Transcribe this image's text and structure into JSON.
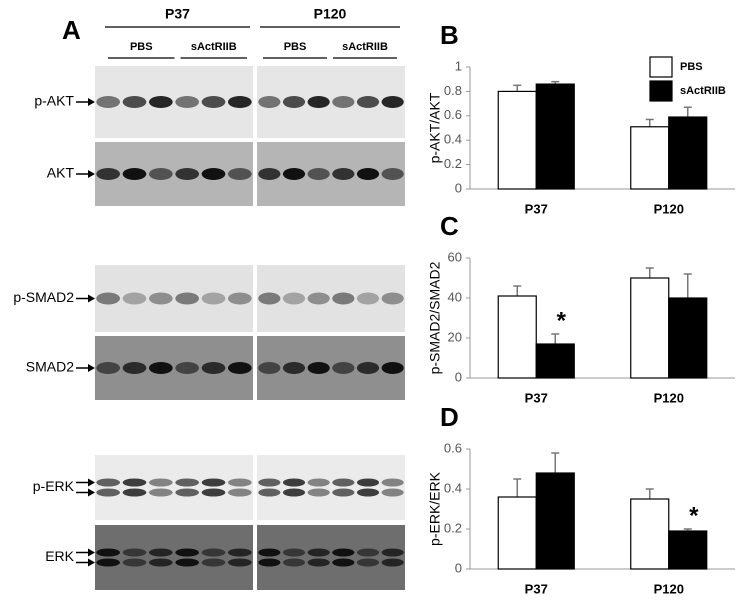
{
  "figure_a": {
    "label": "A",
    "groups": [
      {
        "name": "P37",
        "treatments": [
          "PBS",
          "sActRIIB"
        ]
      },
      {
        "name": "P120",
        "treatments": [
          "PBS",
          "sActRIIB"
        ]
      }
    ],
    "rows": [
      "p-AKT",
      "AKT",
      "p-SMAD2",
      "SMAD2",
      "p-ERK",
      "ERK"
    ]
  },
  "chart_data": [
    {
      "type": "bar",
      "title": "B",
      "y_label": "p-AKT/AKT",
      "categories": [
        "P37",
        "P120"
      ],
      "series": [
        {
          "name": "PBS",
          "color": "#ffffff",
          "values": [
            0.8,
            0.51
          ],
          "errors": [
            0.05,
            0.06
          ]
        },
        {
          "name": "sActRIIB",
          "color": "#000000",
          "values": [
            0.86,
            0.59
          ],
          "errors": [
            0.02,
            0.08
          ]
        }
      ],
      "ylim": [
        0,
        1
      ],
      "yticks": [
        0,
        0.2,
        0.4,
        0.6,
        0.8,
        1
      ],
      "legend": "top-right"
    },
    {
      "type": "bar",
      "title": "C",
      "y_label": "p-SMAD2/SMAD2",
      "categories": [
        "P37",
        "P120"
      ],
      "series": [
        {
          "name": "PBS",
          "color": "#ffffff",
          "values": [
            41,
            50
          ],
          "errors": [
            5,
            5
          ]
        },
        {
          "name": "sActRIIB",
          "color": "#000000",
          "values": [
            17,
            40
          ],
          "errors": [
            5,
            12
          ]
        }
      ],
      "ylim": [
        0,
        60
      ],
      "yticks": [
        0,
        20,
        40,
        60
      ],
      "annotations": [
        {
          "text": "*",
          "series": 1,
          "category": 0
        }
      ]
    },
    {
      "type": "bar",
      "title": "D",
      "y_label": "p-ERK/ERK",
      "categories": [
        "P37",
        "P120"
      ],
      "series": [
        {
          "name": "PBS",
          "color": "#ffffff",
          "values": [
            0.36,
            0.35
          ],
          "errors": [
            0.09,
            0.05
          ]
        },
        {
          "name": "sActRIIB",
          "color": "#000000",
          "values": [
            0.48,
            0.19
          ],
          "errors": [
            0.1,
            0.01
          ]
        }
      ],
      "ylim": [
        0,
        0.6
      ],
      "yticks": [
        0,
        0.2,
        0.4,
        0.6
      ],
      "annotations": [
        {
          "text": "*",
          "series": 1,
          "category": 1
        }
      ]
    }
  ]
}
